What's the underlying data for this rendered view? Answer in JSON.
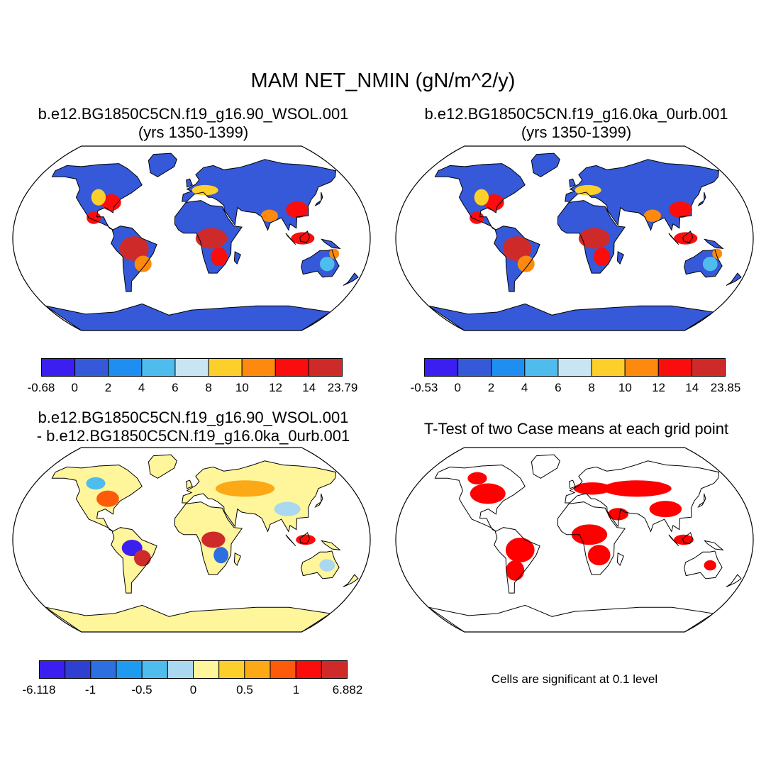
{
  "title": "MAM NET_NMIN (gN/m^2/y)",
  "panels": {
    "top_left": {
      "title_line1": "b.e12.BG1850C5CN.f19_g16.90_WSOL.001",
      "title_line2": "(yrs 1350-1399)"
    },
    "top_right": {
      "title_line1": "b.e12.BG1850C5CN.f19_g16.0ka_0urb.001",
      "title_line2": "(yrs 1350-1399)"
    },
    "bottom_left": {
      "title_line1": "b.e12.BG1850C5CN.f19_g16.90_WSOL.001",
      "title_line2": "- b.e12.BG1850C5CN.f19_g16.0ka_0urb.001"
    },
    "bottom_right": {
      "title_line1": "T-Test of two Case means at each grid point",
      "note": "Cells are significant at 0.1 level"
    }
  },
  "colorbars": {
    "top_left": {
      "labels": [
        "-0.68",
        "0",
        "2",
        "4",
        "6",
        "8",
        "10",
        "12",
        "14",
        "23.79"
      ],
      "colors": [
        "#3b1ff0",
        "#3559d8",
        "#1e8ef0",
        "#4fbcee",
        "#c7e5f3",
        "#fdcf2a",
        "#fd8a0e",
        "#fb0d0d",
        "#cf2a2a"
      ]
    },
    "top_right": {
      "labels": [
        "-0.53",
        "0",
        "2",
        "4",
        "6",
        "8",
        "10",
        "12",
        "14",
        "23.85"
      ],
      "colors": [
        "#3b1ff0",
        "#3559d8",
        "#1e8ef0",
        "#4fbcee",
        "#c7e5f3",
        "#fdcf2a",
        "#fd8a0e",
        "#fb0d0d",
        "#cf2a2a"
      ]
    },
    "bottom_left": {
      "labels": [
        "-6.118",
        "-1",
        "-0.5",
        "0",
        "0.5",
        "1",
        "6.882"
      ],
      "label_slots": [
        0,
        2,
        4,
        6,
        8,
        10,
        12
      ],
      "colors": [
        "#3b1ff0",
        "#2f3fd0",
        "#2d6ee0",
        "#1e9af0",
        "#4fbcee",
        "#a9d8f0",
        "#fff59a",
        "#fdcf2a",
        "#fda815",
        "#fd5a0a",
        "#fb0d0d",
        "#cf2a2a"
      ]
    }
  },
  "map_colors": {
    "land_outline": "#000000",
    "ocean": "#ffffff",
    "significant": "#ff0000"
  }
}
